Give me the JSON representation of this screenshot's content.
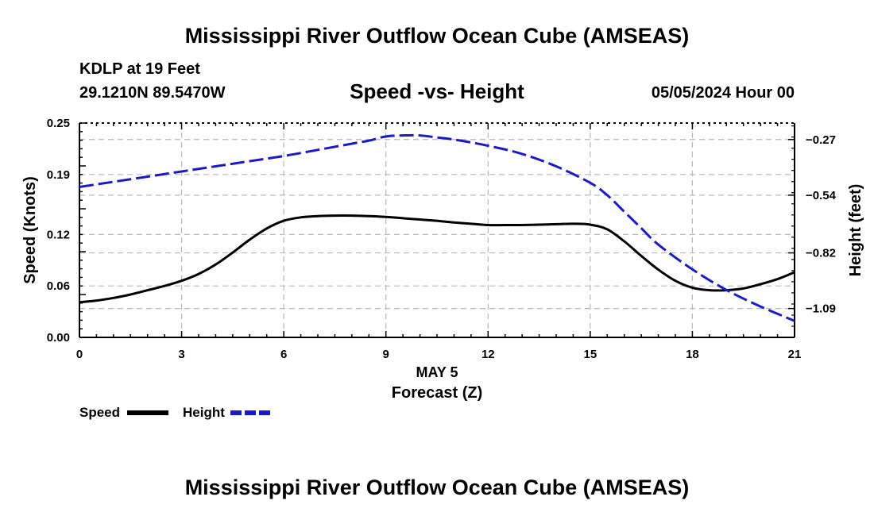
{
  "header": {
    "title": "Mississippi River Outflow Ocean Cube (AMSEAS)",
    "title_repeat": "Mississippi River Outflow Ocean Cube (AMSEAS)",
    "station": "KDLP at 19 Feet",
    "coordinates": "29.1210N  89.5470W",
    "subtitle": "Speed -vs- Height",
    "datetime": "05/05/2024 Hour 00"
  },
  "chart_data": {
    "type": "line",
    "title": "Speed -vs- Height",
    "xlabel": "Forecast (Z)",
    "xlabel_date": "MAY 5",
    "ylabel": "Speed (Knots)",
    "y2label": "Height (feet)",
    "xlim": [
      0,
      21
    ],
    "ylim": [
      0,
      0.25
    ],
    "y2lim": [
      -1.23,
      -0.19
    ],
    "xticks": [
      0,
      3,
      6,
      9,
      12,
      15,
      18,
      21
    ],
    "xtick_labels": [
      "0",
      "3",
      "6",
      "9",
      "12",
      "15",
      "18",
      "21"
    ],
    "yticks": [
      0.0,
      0.06,
      0.12,
      0.19,
      0.25
    ],
    "ytick_labels": [
      "0.00",
      "0.06",
      "0.12",
      "0.19",
      "0.25"
    ],
    "y2ticks": [
      -0.27,
      -0.54,
      -0.82,
      -1.09
    ],
    "y2tick_labels": [
      "−0.27",
      "−0.54",
      "−0.82",
      "−1.09"
    ],
    "grid": true,
    "legend_position": "bottom-left",
    "series": [
      {
        "name": "Speed",
        "axis": "left",
        "color": "#000000",
        "style": "solid",
        "x": [
          0,
          0.5,
          1,
          1.5,
          2,
          2.5,
          3,
          3.5,
          4,
          4.5,
          5,
          5.5,
          6,
          6.5,
          7,
          7.5,
          8,
          8.5,
          9,
          9.5,
          10,
          10.5,
          11,
          11.5,
          12,
          12.5,
          13,
          13.5,
          14,
          14.5,
          15,
          15.5,
          16,
          16.5,
          17,
          17.5,
          18,
          18.5,
          19,
          19.5,
          20,
          20.5,
          21
        ],
        "values": [
          0.041,
          0.043,
          0.046,
          0.05,
          0.055,
          0.06,
          0.066,
          0.074,
          0.085,
          0.099,
          0.114,
          0.127,
          0.136,
          0.14,
          0.1415,
          0.142,
          0.142,
          0.1415,
          0.1405,
          0.139,
          0.1375,
          0.136,
          0.134,
          0.1325,
          0.131,
          0.131,
          0.131,
          0.1315,
          0.132,
          0.1325,
          0.1315,
          0.126,
          0.112,
          0.095,
          0.079,
          0.066,
          0.058,
          0.055,
          0.055,
          0.057,
          0.062,
          0.068,
          0.076
        ]
      },
      {
        "name": "Height",
        "axis": "right",
        "color": "#1a1acc",
        "style": "dashed",
        "x": [
          0,
          1,
          2,
          3,
          4,
          5,
          6,
          7,
          8,
          8.5,
          9,
          9.5,
          10,
          10.5,
          11,
          12,
          13,
          14,
          15,
          15.5,
          16,
          16.5,
          17,
          18,
          19,
          20,
          21
        ],
        "values": [
          -0.5,
          -0.475,
          -0.45,
          -0.425,
          -0.4,
          -0.375,
          -0.35,
          -0.32,
          -0.29,
          -0.275,
          -0.255,
          -0.25,
          -0.25,
          -0.26,
          -0.27,
          -0.3,
          -0.34,
          -0.4,
          -0.48,
          -0.54,
          -0.62,
          -0.7,
          -0.78,
          -0.9,
          -1.0,
          -1.08,
          -1.15
        ]
      }
    ]
  },
  "legend": {
    "speed_label": "Speed",
    "height_label": "Height"
  }
}
